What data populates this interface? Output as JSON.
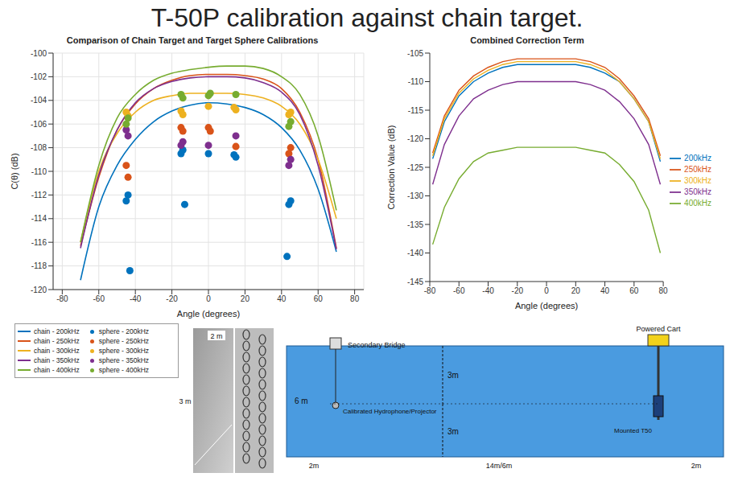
{
  "title": "T-50P calibration against chain target.",
  "chart_data": [
    {
      "type": "line",
      "title": "Comparison of Chain Target and Target Sphere Calibrations",
      "x_label": "Angle (degrees)",
      "y_label": "C(θ) (dB)",
      "xlim": [
        -85,
        85
      ],
      "xticks": [
        -80,
        -60,
        -40,
        -20,
        0,
        20,
        40,
        60,
        80
      ],
      "ylim": [
        -120,
        -100
      ],
      "yticks": [
        -120,
        -118,
        -116,
        -114,
        -112,
        -110,
        -108,
        -106,
        -104,
        -102,
        -100
      ],
      "grid": true,
      "legend": "bottom",
      "series": [
        {
          "name": "chain - 200kHz",
          "type": "line",
          "color": "#0072bd",
          "x": [
            -70,
            -60,
            -50,
            -40,
            -30,
            -20,
            -10,
            0,
            10,
            20,
            30,
            40,
            50,
            60,
            70
          ],
          "values": [
            -119.2,
            -113,
            -109.5,
            -107.3,
            -105.8,
            -104.9,
            -104.4,
            -104.2,
            -104.3,
            -104.6,
            -105.2,
            -106.3,
            -108.2,
            -111.5,
            -116.8
          ]
        },
        {
          "name": "chain - 250kHz",
          "type": "line",
          "color": "#d95319",
          "x": [
            -70,
            -60,
            -50,
            -40,
            -30,
            -20,
            -10,
            0,
            10,
            20,
            30,
            40,
            50,
            60,
            70
          ],
          "values": [
            -116.3,
            -110.5,
            -106.5,
            -104.3,
            -103,
            -102.3,
            -101.9,
            -101.8,
            -101.8,
            -101.9,
            -102.2,
            -103,
            -105,
            -109,
            -116.5
          ]
        },
        {
          "name": "chain - 300kHz",
          "type": "line",
          "color": "#edb120",
          "x": [
            -70,
            -60,
            -50,
            -40,
            -30,
            -20,
            -10,
            0,
            10,
            20,
            30,
            40,
            50,
            60,
            70
          ],
          "values": [
            -116,
            -110,
            -106.8,
            -105,
            -104,
            -103.6,
            -103.4,
            -103.4,
            -103.4,
            -103.5,
            -103.8,
            -104.5,
            -106,
            -109,
            -114
          ]
        },
        {
          "name": "chain - 350kHz",
          "type": "line",
          "color": "#7e2f8e",
          "x": [
            -70,
            -60,
            -50,
            -40,
            -30,
            -20,
            -10,
            0,
            10,
            20,
            30,
            40,
            50,
            60,
            70
          ],
          "values": [
            -116.5,
            -110.3,
            -106.5,
            -104.2,
            -103,
            -102.4,
            -102.1,
            -102,
            -102,
            -102.1,
            -102.5,
            -103.3,
            -105.2,
            -109.5,
            -116.6
          ]
        },
        {
          "name": "chain - 400kHz",
          "type": "line",
          "color": "#77ac30",
          "x": [
            -70,
            -60,
            -50,
            -40,
            -30,
            -20,
            -10,
            0,
            10,
            20,
            30,
            40,
            50,
            60,
            70
          ],
          "values": [
            -116,
            -109.5,
            -105.5,
            -103.5,
            -102.3,
            -101.7,
            -101.4,
            -101.2,
            -101.1,
            -101.1,
            -101.3,
            -102,
            -103.5,
            -107,
            -113.3
          ]
        },
        {
          "name": "sphere - 200kHz",
          "type": "scatter",
          "marker": "circle",
          "color": "#0072bd",
          "x": [
            -45,
            -44,
            -43,
            -15,
            -14,
            -13,
            0,
            15,
            14,
            45,
            44,
            43
          ],
          "values": [
            -112.5,
            -112,
            -118.4,
            -108.5,
            -108.2,
            -112.8,
            -108.5,
            -108.8,
            -108.6,
            -112.5,
            -112.8,
            -117.2
          ]
        },
        {
          "name": "sphere - 250kHz",
          "type": "scatter",
          "marker": "circle",
          "color": "#d95319",
          "x": [
            -45,
            -44,
            -15,
            -14,
            0,
            1,
            15,
            45,
            44
          ],
          "values": [
            -109.5,
            -110.5,
            -106.3,
            -106.6,
            -106.3,
            -106.6,
            -107.9,
            -108,
            -108.5
          ]
        },
        {
          "name": "sphere - 300kHz",
          "type": "scatter",
          "marker": "circle",
          "color": "#edb120",
          "x": [
            -45,
            -44,
            -15,
            -14,
            0,
            15,
            14,
            45,
            44
          ],
          "values": [
            -105,
            -105.3,
            -104.9,
            -105.2,
            -104.5,
            -104.8,
            -104.6,
            -105,
            -105.2
          ]
        },
        {
          "name": "sphere - 350kHz",
          "type": "scatter",
          "marker": "circle",
          "color": "#7e2f8e",
          "x": [
            -45,
            -44,
            -15,
            -14,
            0,
            15,
            45,
            44
          ],
          "values": [
            -106.5,
            -107,
            -107.8,
            -107.5,
            -107.8,
            -107,
            -109,
            -109.5
          ]
        },
        {
          "name": "sphere - 400kHz",
          "type": "scatter",
          "marker": "circle",
          "color": "#77ac30",
          "x": [
            -45,
            -44,
            -15,
            -14,
            0,
            1,
            15,
            45,
            44
          ],
          "values": [
            -106,
            -105.5,
            -103.5,
            -103.8,
            -103.6,
            -103.4,
            -103.5,
            -105.8,
            -106.2
          ]
        }
      ]
    },
    {
      "type": "line",
      "title": "Combined Correction Term",
      "x_label": "Angle (degrees)",
      "y_label": "Correction Value (dB)",
      "x": [
        -78,
        -70,
        -60,
        -50,
        -40,
        -30,
        -20,
        -10,
        0,
        10,
        20,
        30,
        40,
        50,
        60,
        70,
        78
      ],
      "xlim": [
        -80,
        80
      ],
      "xticks": [
        -80,
        -60,
        -40,
        -20,
        0,
        20,
        40,
        60,
        80
      ],
      "ylim": [
        -145,
        -105
      ],
      "yticks": [
        -145,
        -140,
        -135,
        -130,
        -125,
        -120,
        -115,
        -110,
        -105
      ],
      "grid": false,
      "legend": "right",
      "series": [
        {
          "name": "200kHz",
          "color": "#0072bd",
          "values": [
            -123.5,
            -117,
            -112.5,
            -110,
            -108.5,
            -107.5,
            -107,
            -107,
            -107,
            -107,
            -107,
            -107.5,
            -108.5,
            -110,
            -113,
            -117,
            -124
          ]
        },
        {
          "name": "250kHz",
          "color": "#d95319",
          "values": [
            -122.5,
            -116,
            -111.5,
            -109,
            -107.5,
            -106.5,
            -106,
            -106,
            -106,
            -106,
            -106,
            -106.5,
            -107.5,
            -109.5,
            -112.5,
            -116.5,
            -123
          ]
        },
        {
          "name": "300kHz",
          "color": "#edb120",
          "values": [
            -123,
            -116.5,
            -112,
            -109.5,
            -108,
            -107,
            -106.5,
            -106.5,
            -106.5,
            -106.5,
            -106.5,
            -107,
            -108,
            -110,
            -113,
            -117,
            -123.5
          ]
        },
        {
          "name": "350kHz",
          "color": "#7e2f8e",
          "values": [
            -128,
            -121,
            -116,
            -113,
            -111.5,
            -110.5,
            -110,
            -110,
            -110,
            -110,
            -110,
            -110.5,
            -111.5,
            -113.5,
            -116.5,
            -121,
            -128
          ]
        },
        {
          "name": "400kHz",
          "color": "#77ac30",
          "values": [
            -138.5,
            -132,
            -127,
            -124,
            -122.5,
            -122,
            -121.5,
            -121.5,
            -121.5,
            -121.5,
            -121.5,
            -122,
            -122.5,
            -124.5,
            -127.5,
            -132.5,
            -140
          ]
        }
      ]
    }
  ],
  "photo": {
    "width_label": "2 m",
    "height_label": "3 m"
  },
  "diagram": {
    "bridge": "Secondary Bridge",
    "cart": "Powered Cart",
    "upper_depth": "3m",
    "lower_depth": "3m",
    "total_depth": "6 m",
    "hydrophone": "Calibrated Hydrophone/Projector",
    "mount": "Mounted T50",
    "left_gap": "2m",
    "span": "14m/6m",
    "right_gap": "2m"
  }
}
